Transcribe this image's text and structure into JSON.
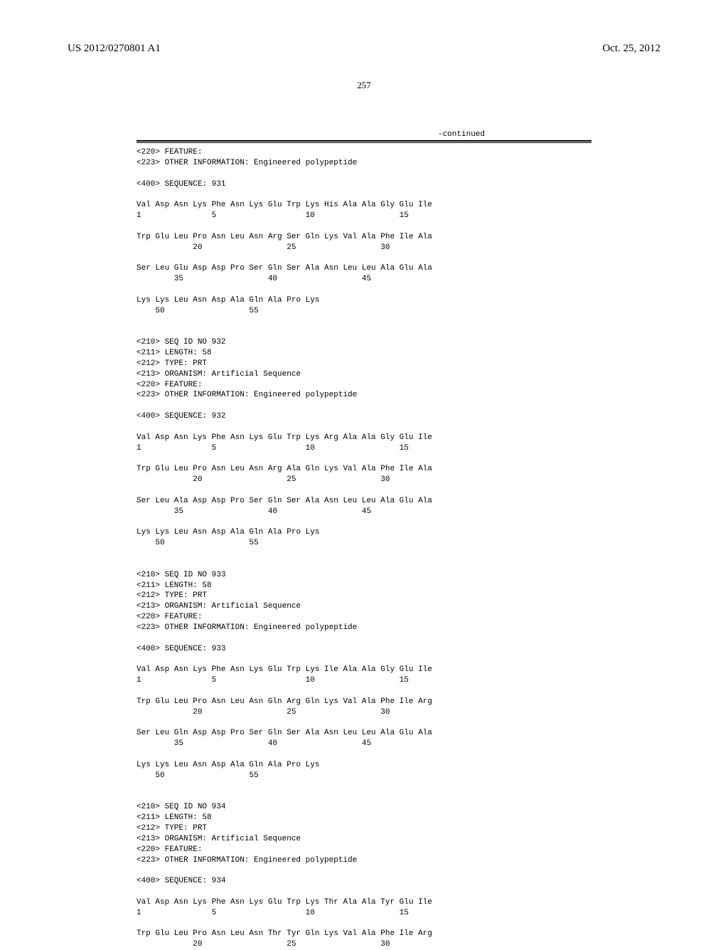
{
  "header": {
    "left": "US 2012/0270801 A1",
    "right": "Oct. 25, 2012"
  },
  "page_number": "257",
  "continued_label": "-continued",
  "colors": {
    "background": "#ffffff",
    "text": "#000000",
    "rule": "#000000"
  },
  "fonts": {
    "header_family": "Times New Roman",
    "body_family": "Courier New",
    "header_size_pt": 11,
    "body_size_pt": 8,
    "page_num_size_pt": 10
  },
  "sequences": [
    {
      "feature_intro": "<220> FEATURE:\n<223> OTHER INFORMATION: Engineered polypeptide",
      "seq_header": "<400> SEQUENCE: 931",
      "lines": [
        {
          "aa": "Val Asp Asn Lys Phe Asn Lys Glu Trp Lys His Ala Ala Gly Glu Ile",
          "nums": "1               5                   10                  15"
        },
        {
          "aa": "Trp Glu Leu Pro Asn Leu Asn Arg Ser Gln Lys Val Ala Phe Ile Ala",
          "nums": "            20                  25                  30"
        },
        {
          "aa": "Ser Leu Glu Asp Asp Pro Ser Gln Ser Ala Asn Leu Leu Ala Glu Ala",
          "nums": "        35                  40                  45"
        },
        {
          "aa": "Lys Lys Leu Asn Asp Ala Gln Ala Pro Lys",
          "nums": "    50                  55"
        }
      ]
    },
    {
      "header_block": "<210> SEQ ID NO 932\n<211> LENGTH: 58\n<212> TYPE: PRT\n<213> ORGANISM: Artificial Sequence\n<220> FEATURE:\n<223> OTHER INFORMATION: Engineered polypeptide",
      "seq_header": "<400> SEQUENCE: 932",
      "lines": [
        {
          "aa": "Val Asp Asn Lys Phe Asn Lys Glu Trp Lys Arg Ala Ala Gly Glu Ile",
          "nums": "1               5                   10                  15"
        },
        {
          "aa": "Trp Glu Leu Pro Asn Leu Asn Arg Ala Gln Lys Val Ala Phe Ile Ala",
          "nums": "            20                  25                  30"
        },
        {
          "aa": "Ser Leu Ala Asp Asp Pro Ser Gln Ser Ala Asn Leu Leu Ala Glu Ala",
          "nums": "        35                  40                  45"
        },
        {
          "aa": "Lys Lys Leu Asn Asp Ala Gln Ala Pro Lys",
          "nums": "    50                  55"
        }
      ]
    },
    {
      "header_block": "<210> SEQ ID NO 933\n<211> LENGTH: 58\n<212> TYPE: PRT\n<213> ORGANISM: Artificial Sequence\n<220> FEATURE:\n<223> OTHER INFORMATION: Engineered polypeptide",
      "seq_header": "<400> SEQUENCE: 933",
      "lines": [
        {
          "aa": "Val Asp Asn Lys Phe Asn Lys Glu Trp Lys Ile Ala Ala Gly Glu Ile",
          "nums": "1               5                   10                  15"
        },
        {
          "aa": "Trp Glu Leu Pro Asn Leu Asn Gln Arg Gln Lys Val Ala Phe Ile Arg",
          "nums": "            20                  25                  30"
        },
        {
          "aa": "Ser Leu Gln Asp Asp Pro Ser Gln Ser Ala Asn Leu Leu Ala Glu Ala",
          "nums": "        35                  40                  45"
        },
        {
          "aa": "Lys Lys Leu Asn Asp Ala Gln Ala Pro Lys",
          "nums": "    50                  55"
        }
      ]
    },
    {
      "header_block": "<210> SEQ ID NO 934\n<211> LENGTH: 58\n<212> TYPE: PRT\n<213> ORGANISM: Artificial Sequence\n<220> FEATURE:\n<223> OTHER INFORMATION: Engineered polypeptide",
      "seq_header": "<400> SEQUENCE: 934",
      "lines": [
        {
          "aa": "Val Asp Asn Lys Phe Asn Lys Glu Trp Lys Thr Ala Ala Tyr Glu Ile",
          "nums": "1               5                   10                  15"
        },
        {
          "aa": "Trp Glu Leu Pro Asn Leu Asn Thr Tyr Gln Lys Val Ala Phe Ile Arg",
          "nums": "            20                  25                  30"
        }
      ]
    }
  ]
}
